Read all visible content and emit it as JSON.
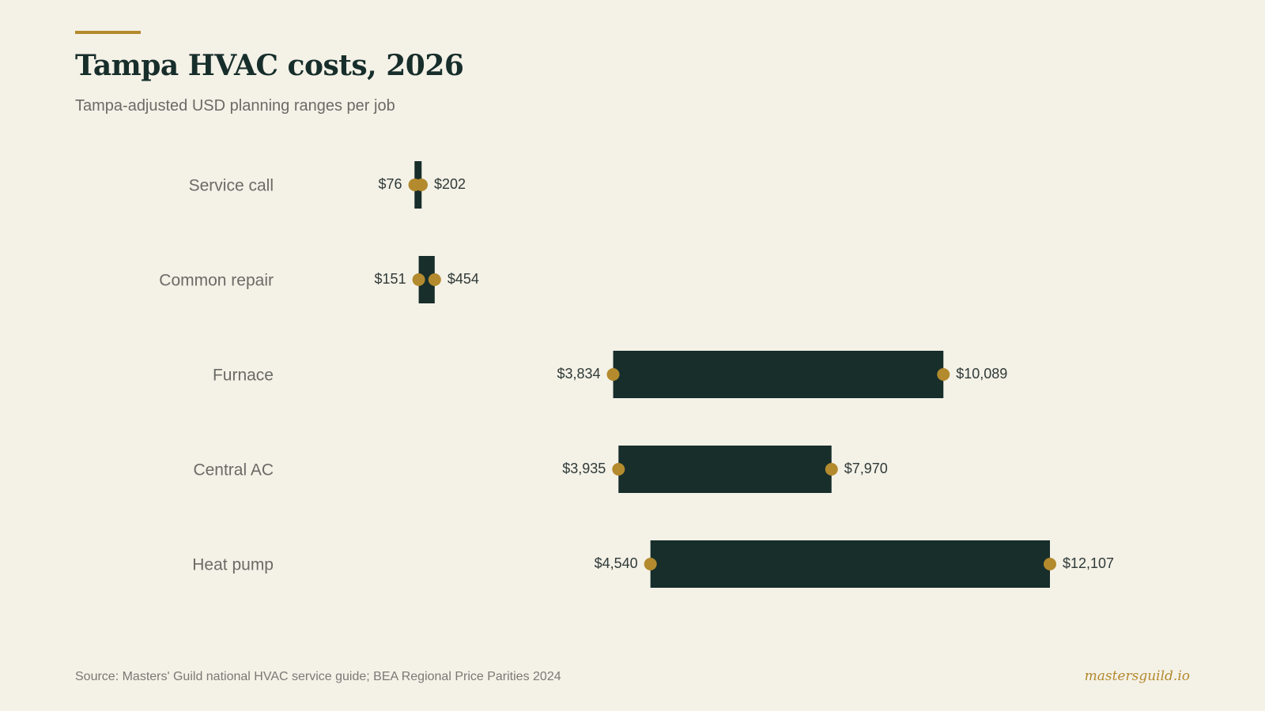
{
  "header": {
    "title": "Tampa HVAC costs, 2026",
    "subtitle": "Tampa-adjusted USD planning ranges per job"
  },
  "footer": {
    "source": "Source: Masters' Guild national HVAC service guide; BEA Regional Price Parities 2024",
    "brand": "mastersguild.io"
  },
  "colors": {
    "background": "#f4f1e7",
    "bar": "#172e2b",
    "accent": "#b38a2d"
  },
  "chart_data": {
    "type": "range-bar",
    "title": "Tampa HVAC costs, 2026",
    "subtitle": "Tampa-adjusted USD planning ranges per job",
    "xlabel": "",
    "ylabel": "",
    "xlim": [
      0,
      12107
    ],
    "grid": false,
    "categories": [
      "Service call",
      "Common repair",
      "Furnace",
      "Central AC",
      "Heat pump"
    ],
    "low": [
      76,
      151,
      3834,
      3935,
      4540
    ],
    "high": [
      202,
      454,
      10089,
      7970,
      12107
    ],
    "low_labels": [
      "$76",
      "$151",
      "$3,834",
      "$3,935",
      "$4,540"
    ],
    "high_labels": [
      "$202",
      "$454",
      "$10,089",
      "$7,970",
      "$12,107"
    ]
  }
}
